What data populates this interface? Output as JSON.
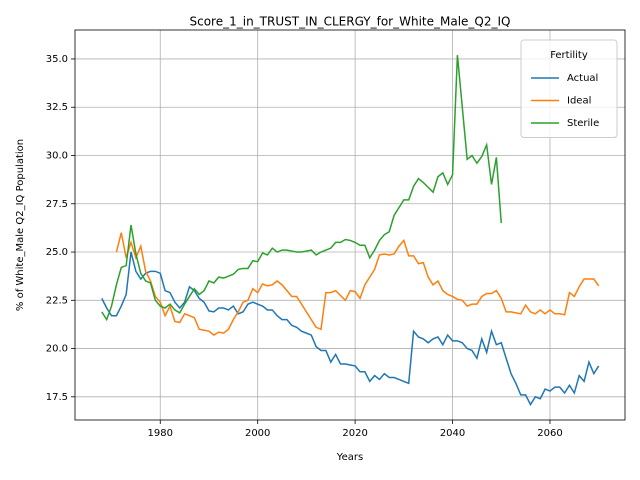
{
  "chart_data": {
    "type": "line",
    "title": "Score_1_in_TRUST_IN_CLERGY_for_White_Male_Q2_IQ",
    "x_label": "Years",
    "y_label": "% of White_Male Q2_IQ Population",
    "legend_title": "Fertility",
    "legend_position": "upper right",
    "grid": true,
    "xlim": [
      1962.5,
      2075.4
    ],
    "ylim": [
      16.3,
      36.5
    ],
    "xticks": [
      1980,
      2000,
      2020,
      2040,
      2060
    ],
    "yticks": [
      17.5,
      {
        "value": 20,
        "label": "20.0"
      },
      22.5,
      {
        "value": 25,
        "label": "25.0"
      },
      27.5,
      {
        "value": 30,
        "label": "30.0"
      },
      32.5,
      {
        "value": 35,
        "label": "35.0"
      }
    ],
    "x": [
      1968,
      1969,
      1970,
      1971,
      1972,
      1973,
      1974,
      1975,
      1976,
      1977,
      1978,
      1979,
      1980,
      1981,
      1982,
      1983,
      1984,
      1985,
      1986,
      1987,
      1988,
      1989,
      1990,
      1991,
      1992,
      1993,
      1994,
      1995,
      1996,
      1997,
      1998,
      1999,
      2000,
      2001,
      2002,
      2003,
      2004,
      2005,
      2006,
      2007,
      2008,
      2009,
      2010,
      2011,
      2012,
      2013,
      2014,
      2015,
      2016,
      2017,
      2018,
      2019,
      2020,
      2021,
      2022,
      2023,
      2024,
      2025,
      2026,
      2027,
      2028,
      2029,
      2030,
      2031,
      2032,
      2033,
      2034,
      2035,
      2036,
      2037,
      2038,
      2039,
      2040,
      2041,
      2042,
      2043,
      2044,
      2045,
      2046,
      2047,
      2048,
      2049,
      2050,
      2051,
      2052,
      2053,
      2054,
      2055,
      2056,
      2057,
      2058,
      2059,
      2060,
      2061,
      2062,
      2063,
      2064,
      2065,
      2066,
      2067,
      2068,
      2069,
      2070
    ],
    "series": [
      {
        "name": "Actual",
        "color": "#1f77b4",
        "values": [
          22.6,
          22.1,
          21.7,
          21.7,
          22.2,
          22.8,
          25.0,
          24.0,
          23.6,
          23.9,
          24.0,
          24.0,
          23.9,
          23.0,
          22.9,
          22.4,
          22.1,
          22.4,
          23.2,
          23.0,
          22.6,
          22.4,
          21.95,
          21.9,
          22.1,
          22.1,
          22.0,
          22.2,
          21.8,
          21.9,
          22.3,
          22.4,
          22.3,
          22.2,
          22.0,
          22.0,
          21.7,
          21.5,
          21.5,
          21.2,
          21.1,
          20.9,
          20.8,
          20.7,
          20.1,
          19.9,
          19.9,
          19.3,
          19.7,
          19.2,
          19.2,
          19.15,
          19.1,
          18.8,
          18.8,
          18.3,
          18.6,
          18.4,
          18.7,
          18.5,
          18.5,
          18.4,
          18.3,
          18.2,
          20.9,
          20.6,
          20.5,
          20.3,
          20.5,
          20.6,
          20.2,
          20.7,
          20.4,
          20.4,
          20.3,
          20.0,
          19.9,
          19.5,
          20.5,
          19.8,
          20.9,
          20.2,
          20.3,
          19.5,
          18.7,
          18.2,
          17.6,
          17.6,
          17.1,
          17.5,
          17.4,
          17.9,
          17.8,
          18.0,
          18.0,
          17.7,
          18.1,
          17.7,
          18.6,
          18.3,
          19.3,
          18.7,
          19.1
        ]
      },
      {
        "name": "Ideal",
        "color": "#ff7f0e",
        "values": [
          null,
          null,
          null,
          25.0,
          26.0,
          24.7,
          25.5,
          24.7,
          25.3,
          24.0,
          23.5,
          22.7,
          22.4,
          21.7,
          22.2,
          21.4,
          21.35,
          21.8,
          21.7,
          21.6,
          21.0,
          20.95,
          20.9,
          20.7,
          20.85,
          20.8,
          21.0,
          21.5,
          21.9,
          22.4,
          22.5,
          23.1,
          22.9,
          23.35,
          23.25,
          23.3,
          23.5,
          23.3,
          23.0,
          22.7,
          22.7,
          22.3,
          21.9,
          21.5,
          21.1,
          21.0,
          22.9,
          22.9,
          23.0,
          22.75,
          22.5,
          23.0,
          22.95,
          22.6,
          23.3,
          23.7,
          24.1,
          24.85,
          24.9,
          24.85,
          24.9,
          25.3,
          25.6,
          24.8,
          24.8,
          24.4,
          24.45,
          23.7,
          23.3,
          23.5,
          23.0,
          22.8,
          22.7,
          22.55,
          22.5,
          22.2,
          22.3,
          22.3,
          22.7,
          22.85,
          22.85,
          23.0,
          22.6,
          21.9,
          21.9,
          21.85,
          21.8,
          22.25,
          21.9,
          21.8,
          22.0,
          21.8,
          22.0,
          21.8,
          21.8,
          21.75,
          22.9,
          22.7,
          23.2,
          23.6,
          23.6,
          23.6,
          23.25
        ]
      },
      {
        "name": "Sterile",
        "color": "#2ca02c",
        "values": [
          21.9,
          21.5,
          22.2,
          23.3,
          24.2,
          24.3,
          26.4,
          24.9,
          23.9,
          23.5,
          23.4,
          22.5,
          22.2,
          22.1,
          22.3,
          22.0,
          21.85,
          22.3,
          22.7,
          23.1,
          22.8,
          23.0,
          23.5,
          23.4,
          23.7,
          23.65,
          23.75,
          23.85,
          24.1,
          24.15,
          24.15,
          24.55,
          24.5,
          24.95,
          24.85,
          25.2,
          25.0,
          25.1,
          25.1,
          25.05,
          25.0,
          25.0,
          25.05,
          25.1,
          24.85,
          25.0,
          25.1,
          25.2,
          25.5,
          25.5,
          25.65,
          25.6,
          25.5,
          25.35,
          25.35,
          24.7,
          25.1,
          25.6,
          25.9,
          26.05,
          26.9,
          27.3,
          27.7,
          27.7,
          28.4,
          28.8,
          28.6,
          28.35,
          28.1,
          28.9,
          29.1,
          28.5,
          29.0,
          35.2,
          32.5,
          29.8,
          30.0,
          29.6,
          29.95,
          30.55,
          28.5,
          29.9,
          26.5,
          null,
          null,
          null,
          null,
          null,
          null,
          null,
          null,
          null,
          null,
          null,
          null,
          null,
          null,
          null,
          null,
          null,
          null,
          null,
          null
        ]
      }
    ]
  }
}
